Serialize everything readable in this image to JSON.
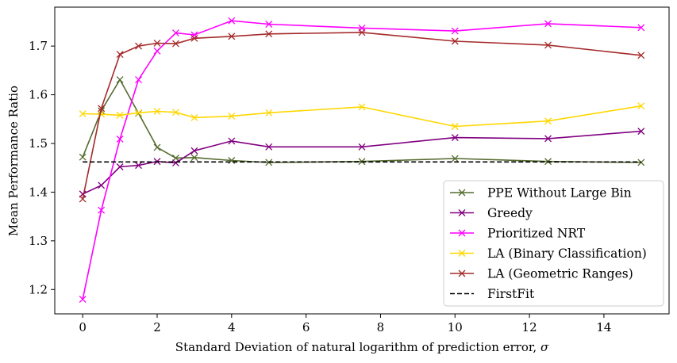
{
  "chart_data": {
    "type": "line",
    "title": "",
    "xlabel": "Standard Deviation of natural logarithm of prediction error, ",
    "xlabel_symbol": "σ",
    "ylabel": "Mean Performance Ratio",
    "xlim": [
      -0.75,
      15.75
    ],
    "ylim": [
      1.15,
      1.78
    ],
    "x_ticks": [
      0,
      2,
      4,
      6,
      8,
      10,
      12,
      14
    ],
    "x_tick_labels": [
      "0",
      "2",
      "4",
      "6",
      "8",
      "10",
      "12",
      "14"
    ],
    "y_ticks": [
      1.2,
      1.3,
      1.4,
      1.5,
      1.6,
      1.7
    ],
    "y_tick_labels": [
      "1.2",
      "1.3",
      "1.4",
      "1.5",
      "1.6",
      "1.7"
    ],
    "grid": false,
    "legend_position": "lower-right",
    "x": [
      0,
      0.5,
      1,
      1.5,
      2,
      2.5,
      3,
      4,
      5,
      7.5,
      10,
      12.5,
      15
    ],
    "series": [
      {
        "name": "PPE Without Large Bin",
        "color": "#556b2f",
        "marker": "x",
        "dashed": false,
        "values": [
          1.472,
          1.567,
          1.631,
          1.562,
          1.492,
          1.47,
          1.471,
          1.465,
          1.461,
          1.463,
          1.469,
          1.463,
          1.461
        ]
      },
      {
        "name": "Greedy",
        "color": "#800080",
        "marker": "x",
        "dashed": false,
        "values": [
          1.396,
          1.414,
          1.452,
          1.455,
          1.463,
          1.46,
          1.485,
          1.505,
          1.493,
          1.493,
          1.512,
          1.51,
          1.525
        ]
      },
      {
        "name": "Prioritized NRT",
        "color": "#ff00ff",
        "marker": "x",
        "dashed": false,
        "values": [
          1.18,
          1.363,
          1.509,
          1.631,
          1.69,
          1.727,
          1.723,
          1.752,
          1.745,
          1.737,
          1.731,
          1.746,
          1.738
        ]
      },
      {
        "name": "LA (Binary Classification)",
        "color": "#ffd700",
        "marker": "x",
        "dashed": false,
        "values": [
          1.561,
          1.56,
          1.558,
          1.563,
          1.566,
          1.564,
          1.553,
          1.556,
          1.563,
          1.575,
          1.535,
          1.546,
          1.577
        ]
      },
      {
        "name": "LA (Geometric Ranges)",
        "color": "#a52a2a",
        "marker": "x",
        "dashed": false,
        "values": [
          1.386,
          1.572,
          1.683,
          1.7,
          1.706,
          1.705,
          1.716,
          1.72,
          1.725,
          1.728,
          1.71,
          1.702,
          1.681
        ]
      },
      {
        "name": "FirstFit",
        "color": "#000000",
        "marker": "none",
        "dashed": true,
        "values": [
          1.462,
          1.462,
          1.462,
          1.462,
          1.462,
          1.462,
          1.462,
          1.462,
          1.462,
          1.462,
          1.462,
          1.462,
          1.462
        ]
      }
    ]
  }
}
